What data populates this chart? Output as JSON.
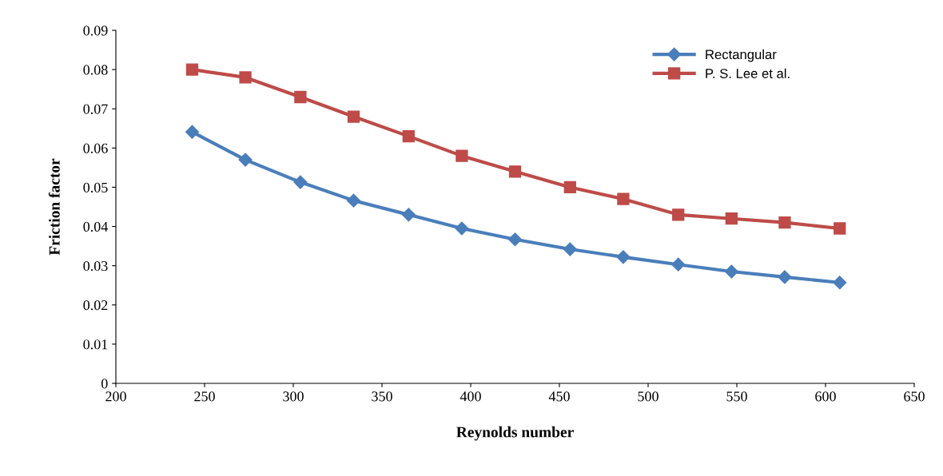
{
  "chart_data": {
    "type": "line",
    "xlabel": "Reynolds number",
    "ylabel": "Friction factor",
    "x": [
      243,
      273,
      304,
      334,
      365,
      395,
      425,
      456,
      486,
      517,
      547,
      577,
      608
    ],
    "series": [
      {
        "name": "Rectangular",
        "color": "#4a7ebb",
        "marker": "diamond",
        "values": [
          0.0641,
          0.057,
          0.0513,
          0.0466,
          0.043,
          0.0395,
          0.0367,
          0.0342,
          0.0322,
          0.0303,
          0.0285,
          0.0271,
          0.0257
        ]
      },
      {
        "name": "P. S. Lee et al.",
        "color": "#be4b48",
        "marker": "square",
        "values": [
          0.08,
          0.078,
          0.073,
          0.068,
          0.063,
          0.058,
          0.054,
          0.05,
          0.047,
          0.043,
          0.042,
          0.041,
          0.0395
        ]
      }
    ],
    "xlim": [
      200,
      650
    ],
    "xticks": [
      200,
      250,
      300,
      350,
      400,
      450,
      500,
      550,
      600,
      650
    ],
    "ylim": [
      0,
      0.09
    ],
    "yticks": [
      {
        "value": 0,
        "label": "0"
      },
      0.01,
      0.02,
      0.03,
      0.04,
      0.05,
      0.06,
      0.07,
      0.08,
      0.09
    ],
    "grid": false,
    "legend": "top right",
    "line_style": "solid"
  }
}
